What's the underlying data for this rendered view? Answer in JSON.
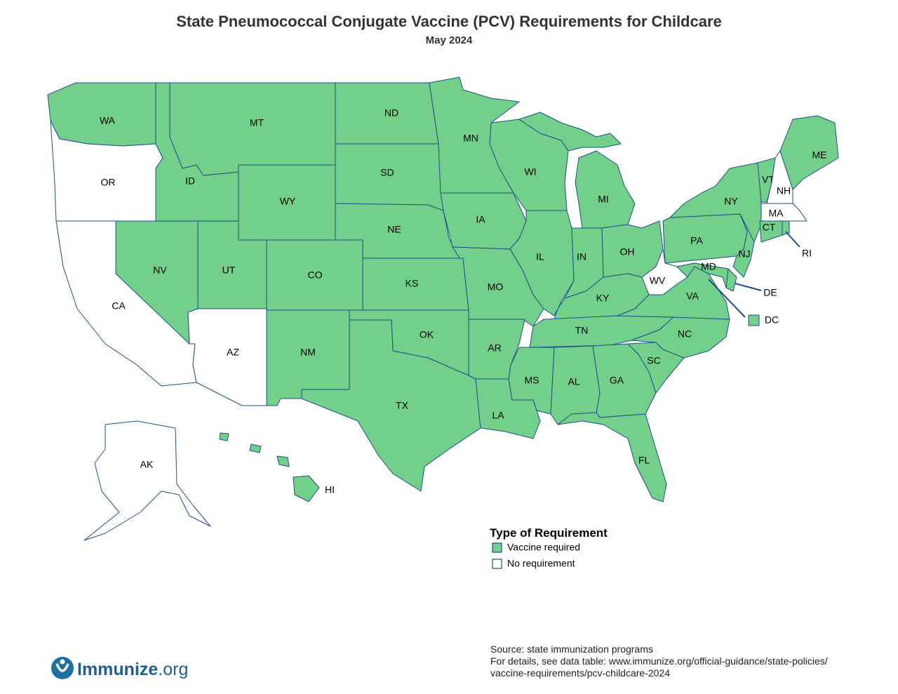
{
  "title": "State Pneumococcal Conjugate Vaccine (PCV) Requirements for Childcare",
  "subtitle": "May 2024",
  "legend": {
    "title": "Type of Requirement",
    "items": [
      {
        "label": "Vaccine required",
        "color": "#72d08a"
      },
      {
        "label": "No requirement",
        "color": "#ffffff"
      }
    ]
  },
  "states": [
    {
      "label": "WA",
      "requirement": "Vaccine required"
    },
    {
      "label": "OR",
      "requirement": "No requirement"
    },
    {
      "label": "CA",
      "requirement": "No requirement"
    },
    {
      "label": "ID",
      "requirement": "Vaccine required"
    },
    {
      "label": "MT",
      "requirement": "Vaccine required"
    },
    {
      "label": "WY",
      "requirement": "Vaccine required"
    },
    {
      "label": "NV",
      "requirement": "Vaccine required"
    },
    {
      "label": "UT",
      "requirement": "Vaccine required"
    },
    {
      "label": "AZ",
      "requirement": "No requirement"
    },
    {
      "label": "CO",
      "requirement": "Vaccine required"
    },
    {
      "label": "NM",
      "requirement": "Vaccine required"
    },
    {
      "label": "ND",
      "requirement": "Vaccine required"
    },
    {
      "label": "SD",
      "requirement": "Vaccine required"
    },
    {
      "label": "NE",
      "requirement": "Vaccine required"
    },
    {
      "label": "KS",
      "requirement": "Vaccine required"
    },
    {
      "label": "OK",
      "requirement": "Vaccine required"
    },
    {
      "label": "TX",
      "requirement": "Vaccine required"
    },
    {
      "label": "MN",
      "requirement": "Vaccine required"
    },
    {
      "label": "IA",
      "requirement": "Vaccine required"
    },
    {
      "label": "MO",
      "requirement": "Vaccine required"
    },
    {
      "label": "AR",
      "requirement": "Vaccine required"
    },
    {
      "label": "LA",
      "requirement": "Vaccine required"
    },
    {
      "label": "WI",
      "requirement": "Vaccine required"
    },
    {
      "label": "IL",
      "requirement": "Vaccine required"
    },
    {
      "label": "MI",
      "requirement": "Vaccine required"
    },
    {
      "label": "IN",
      "requirement": "Vaccine required"
    },
    {
      "label": "OH",
      "requirement": "Vaccine required"
    },
    {
      "label": "KY",
      "requirement": "Vaccine required"
    },
    {
      "label": "TN",
      "requirement": "Vaccine required"
    },
    {
      "label": "MS",
      "requirement": "Vaccine required"
    },
    {
      "label": "AL",
      "requirement": "Vaccine required"
    },
    {
      "label": "GA",
      "requirement": "Vaccine required"
    },
    {
      "label": "FL",
      "requirement": "Vaccine required"
    },
    {
      "label": "SC",
      "requirement": "Vaccine required"
    },
    {
      "label": "NC",
      "requirement": "Vaccine required"
    },
    {
      "label": "VA",
      "requirement": "Vaccine required"
    },
    {
      "label": "WV",
      "requirement": "No requirement"
    },
    {
      "label": "PA",
      "requirement": "Vaccine required"
    },
    {
      "label": "NY",
      "requirement": "Vaccine required"
    },
    {
      "label": "VT",
      "requirement": "Vaccine required"
    },
    {
      "label": "NH",
      "requirement": "No requirement"
    },
    {
      "label": "ME",
      "requirement": "Vaccine required"
    },
    {
      "label": "MA",
      "requirement": "No requirement"
    },
    {
      "label": "CT",
      "requirement": "Vaccine required"
    },
    {
      "label": "RI",
      "requirement": "Vaccine required"
    },
    {
      "label": "NJ",
      "requirement": "Vaccine required"
    },
    {
      "label": "DE",
      "requirement": "Vaccine required"
    },
    {
      "label": "MD",
      "requirement": "Vaccine required"
    },
    {
      "label": "DC",
      "requirement": "Vaccine required"
    },
    {
      "label": "AK",
      "requirement": "No requirement"
    },
    {
      "label": "HI",
      "requirement": "Vaccine required"
    }
  ],
  "source": [
    "Source: state immunization programs",
    "For details, see data table: www.immunize.org/official-guidance/state-policies/",
    "vaccine-requirements/pcv-childcare-2024"
  ],
  "logo": {
    "name": "Immunize",
    "suffix": ".org"
  }
}
